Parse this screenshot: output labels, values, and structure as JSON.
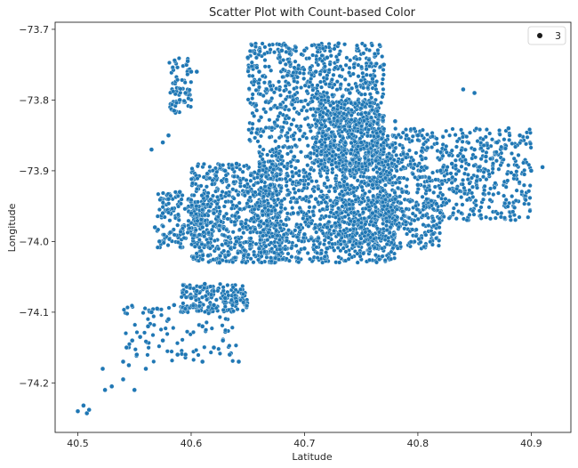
{
  "chart_data": {
    "type": "scatter",
    "title": "Scatter Plot with Count-based Color",
    "xlabel": "Latitude",
    "ylabel": "Longitude",
    "xlim": [
      40.48,
      40.935
    ],
    "ylim": [
      -74.27,
      -73.69
    ],
    "xticks": [
      40.5,
      40.6,
      40.7,
      40.8,
      40.9
    ],
    "xtick_labels": [
      "40.5",
      "40.6",
      "40.7",
      "40.8",
      "40.9"
    ],
    "yticks": [
      -73.7,
      -73.8,
      -73.9,
      -74.0,
      -74.1,
      -74.2
    ],
    "ytick_labels": [
      "−73.7",
      "−73.8",
      "−73.9",
      "−74.0",
      "−74.1",
      "−74.2"
    ],
    "grid": false,
    "legend": {
      "placement": "top-right",
      "entries": [
        {
          "label": "3",
          "color": "#1a1a1a"
        }
      ]
    },
    "point_color": "#1f77b4",
    "series": [
      {
        "points": [
          [
            40.5,
            -74.24
          ],
          [
            40.505,
            -74.232
          ],
          [
            40.508,
            -74.243
          ],
          [
            40.51,
            -74.238
          ],
          [
            40.522,
            -74.18
          ],
          [
            40.524,
            -74.21
          ],
          [
            40.53,
            -74.205
          ],
          [
            40.54,
            -74.195
          ],
          [
            40.54,
            -74.17
          ],
          [
            40.543,
            -74.15
          ],
          [
            40.548,
            -74.14
          ],
          [
            40.552,
            -74.16
          ],
          [
            40.545,
            -74.175
          ],
          [
            40.55,
            -74.21
          ],
          [
            40.555,
            -74.135
          ],
          [
            40.56,
            -74.18
          ],
          [
            40.562,
            -74.12
          ],
          [
            40.565,
            -74.1
          ],
          [
            40.57,
            -74.095
          ],
          [
            40.575,
            -74.14
          ],
          [
            40.58,
            -74.11
          ],
          [
            40.585,
            -74.09
          ],
          [
            40.588,
            -74.16
          ],
          [
            40.595,
            -74.16
          ],
          [
            40.6,
            -74.08
          ],
          [
            40.605,
            -74.07
          ],
          [
            40.612,
            -74.06
          ],
          [
            40.61,
            -74.12
          ],
          [
            40.62,
            -74.09
          ],
          [
            40.63,
            -74.08
          ],
          [
            40.64,
            -74.085
          ],
          [
            40.628,
            -74.14
          ],
          [
            40.634,
            -74.16
          ],
          [
            40.642,
            -74.17
          ],
          [
            40.62,
            -74.15
          ],
          [
            40.61,
            -74.17
          ],
          [
            40.585,
            -73.815
          ],
          [
            40.59,
            -73.8
          ],
          [
            40.595,
            -73.79
          ],
          [
            40.6,
            -73.76
          ],
          [
            40.597,
            -73.745
          ],
          [
            40.605,
            -73.76
          ],
          [
            40.575,
            -73.86
          ],
          [
            40.565,
            -73.87
          ],
          [
            40.58,
            -73.85
          ],
          [
            40.568,
            -73.98
          ],
          [
            40.572,
            -74.0
          ],
          [
            40.575,
            -73.96
          ],
          [
            40.58,
            -73.94
          ],
          [
            40.59,
            -73.93
          ],
          [
            40.6,
            -73.96
          ],
          [
            40.61,
            -73.98
          ],
          [
            40.615,
            -74.02
          ],
          [
            40.625,
            -74.03
          ],
          [
            40.63,
            -73.9
          ],
          [
            40.64,
            -73.89
          ],
          [
            40.65,
            -73.93
          ],
          [
            40.66,
            -73.95
          ],
          [
            40.67,
            -73.92
          ],
          [
            40.68,
            -73.88
          ],
          [
            40.69,
            -73.96
          ],
          [
            40.7,
            -73.99
          ],
          [
            40.71,
            -73.94
          ],
          [
            40.72,
            -73.98
          ],
          [
            40.73,
            -73.99
          ],
          [
            40.74,
            -74.0
          ],
          [
            40.75,
            -73.98
          ],
          [
            40.76,
            -73.96
          ],
          [
            40.77,
            -73.95
          ],
          [
            40.78,
            -73.94
          ],
          [
            40.79,
            -73.93
          ],
          [
            40.8,
            -73.92
          ],
          [
            40.81,
            -73.91
          ],
          [
            40.82,
            -73.9
          ],
          [
            40.83,
            -73.89
          ],
          [
            40.84,
            -73.88
          ],
          [
            40.85,
            -73.87
          ],
          [
            40.86,
            -73.88
          ],
          [
            40.87,
            -73.86
          ],
          [
            40.88,
            -73.84
          ],
          [
            40.89,
            -73.85
          ],
          [
            40.9,
            -73.9
          ],
          [
            40.91,
            -73.895
          ],
          [
            40.65,
            -73.74
          ],
          [
            40.66,
            -73.76
          ],
          [
            40.67,
            -73.78
          ],
          [
            40.68,
            -73.73
          ],
          [
            40.69,
            -73.8
          ],
          [
            40.7,
            -73.73
          ],
          [
            40.71,
            -73.76
          ],
          [
            40.72,
            -73.74
          ],
          [
            40.73,
            -73.72
          ],
          [
            40.74,
            -73.79
          ],
          [
            40.75,
            -73.82
          ],
          [
            40.76,
            -73.77
          ],
          [
            40.77,
            -73.75
          ],
          [
            40.78,
            -73.83
          ],
          [
            40.79,
            -73.85
          ],
          [
            40.8,
            -73.85
          ],
          [
            40.69,
            -73.85
          ],
          [
            40.71,
            -73.86
          ],
          [
            40.73,
            -73.87
          ],
          [
            40.75,
            -73.86
          ],
          [
            40.74,
            -73.9
          ],
          [
            40.76,
            -73.92
          ],
          [
            40.78,
            -73.97
          ],
          [
            40.7,
            -74.01
          ],
          [
            40.72,
            -74.01
          ],
          [
            40.64,
            -74.0
          ],
          [
            40.66,
            -74.01
          ],
          [
            40.84,
            -73.785
          ],
          [
            40.85,
            -73.79
          ],
          [
            40.62,
            -73.96
          ],
          [
            40.64,
            -73.95
          ],
          [
            40.66,
            -73.9
          ]
        ]
      }
    ]
  }
}
